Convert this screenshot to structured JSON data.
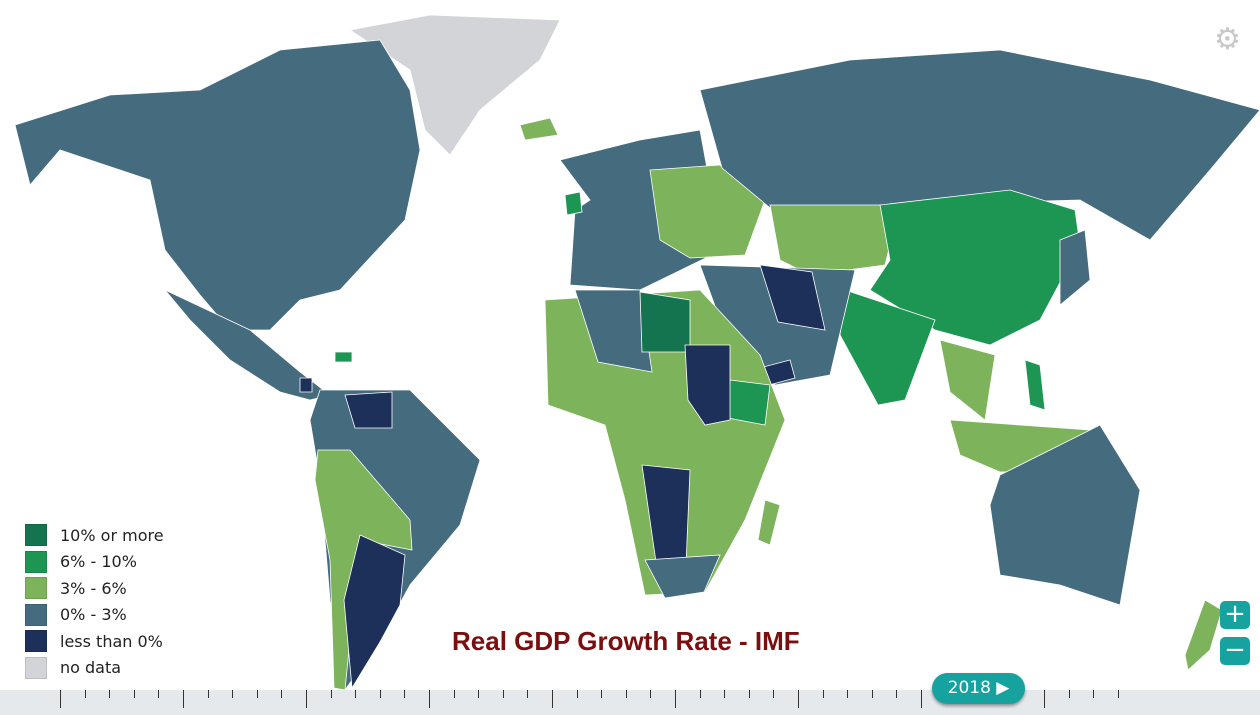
{
  "title": "Real GDP Growth Rate - IMF",
  "colors": {
    "c10": "#13744f",
    "c6": "#1e9653",
    "c3": "#7db35a",
    "c0": "#456b7e",
    "neg": "#1c305a",
    "nodata": "#d3d4d8",
    "accent": "#16a3a0",
    "title": "#7b0f0f"
  },
  "legend": [
    {
      "label": "10% or more",
      "color": "#13744f"
    },
    {
      "label": "6% - 10%",
      "color": "#1e9653"
    },
    {
      "label": "3% - 6%",
      "color": "#7db35a"
    },
    {
      "label": "0% - 3%",
      "color": "#456b7e"
    },
    {
      "label": "less than 0%",
      "color": "#1c305a"
    },
    {
      "label": "no data",
      "color": "#d3d4d8"
    }
  ],
  "zoom": {
    "in": "+",
    "out": "−"
  },
  "settings_icon": "⚙",
  "timeline": {
    "year_label": "2018 ▶"
  }
}
